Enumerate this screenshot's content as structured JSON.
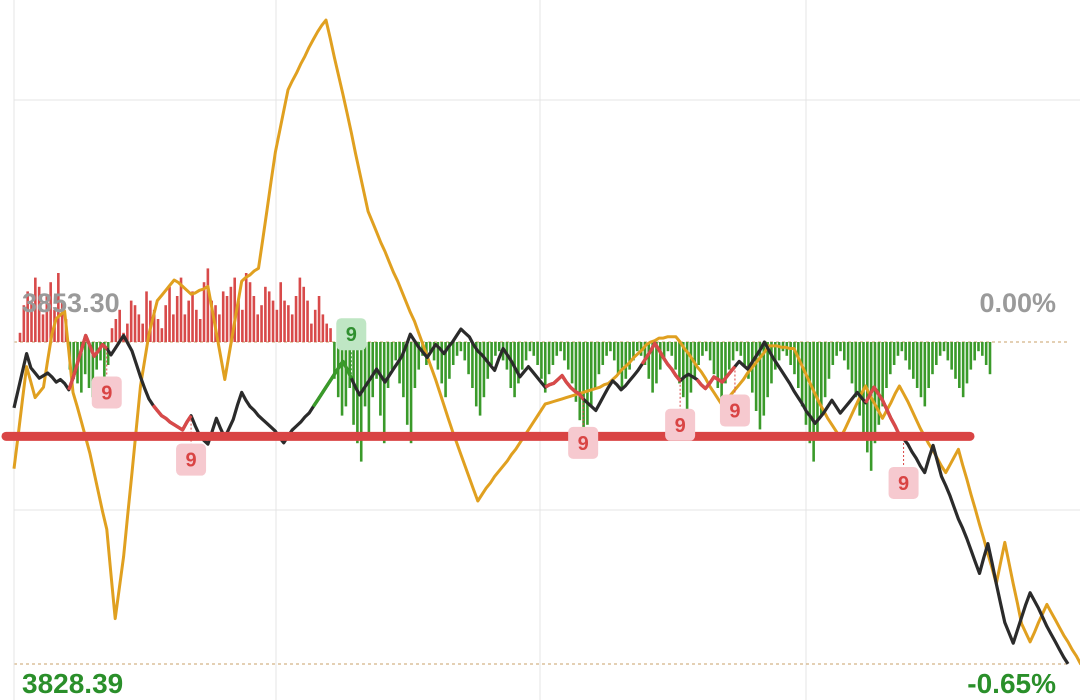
{
  "chart_data": {
    "type": "line",
    "title": "",
    "xlabel": "",
    "ylabel": "",
    "ylim": [
      3828.39,
      3878.21
    ],
    "reference_price": 3853.3,
    "labels": {
      "top_left": "3853.30",
      "top_right": "0.00%",
      "bottom_left": "3828.39",
      "bottom_right": "-0.65%"
    },
    "support_level": 3846.0,
    "colors": {
      "price_line": "#2b2b2b",
      "avg_line": "#e0a020",
      "up_bar": "#d84a4a",
      "down_bar": "#3a9a2a",
      "support": "#d94444",
      "grid": "#e4e4e4",
      "badge_red_bg": "#f6c9cf",
      "badge_red_text": "#d94444",
      "badge_green_bg": "#bfe6c4",
      "badge_green_text": "#2f8f2f"
    },
    "series": [
      {
        "values": [
          3848.2,
          3849.6,
          3851.0,
          3852.4,
          3851.3,
          3850.9,
          3850.5,
          3850.7,
          3850.9,
          3850.6,
          3850.2,
          3850.4,
          3850.1,
          3849.6,
          3850.5,
          3851.6,
          3852.7,
          3853.8,
          3853.0,
          3852.2,
          3852.6,
          3853.1,
          3852.8,
          3852.3,
          3852.8,
          3853.3,
          3853.8,
          3853.2,
          3852.6,
          3851.6,
          3850.6,
          3849.7,
          3848.9,
          3848.4,
          3848.0,
          3847.6,
          3847.4,
          3847.1,
          3846.9,
          3846.7,
          3846.5,
          3847.1,
          3847.6,
          3846.8,
          3846.1,
          3845.7,
          3845.4,
          3846.4,
          3847.4,
          3846.6,
          3845.9,
          3846.6,
          3847.3,
          3848.4,
          3849.4,
          3848.8,
          3848.3,
          3848.0,
          3847.6,
          3847.3,
          3847.0,
          3846.7,
          3846.4,
          3845.9,
          3845.5,
          3846.0,
          3846.5,
          3846.8,
          3847.1,
          3847.5,
          3847.8,
          3848.3,
          3848.8,
          3849.3,
          3849.8,
          3850.3,
          3850.8,
          3851.3,
          3851.8,
          3851.2,
          3850.5,
          3849.8,
          3849.2,
          3849.7,
          3850.2,
          3850.7,
          3851.2,
          3850.7,
          3850.2,
          3850.7,
          3851.2,
          3851.7,
          3852.2,
          3853.0,
          3853.9,
          3853.4,
          3852.9,
          3852.5,
          3852.1,
          3852.6,
          3853.1,
          3852.8,
          3852.4,
          3852.9,
          3853.3,
          3853.8,
          3854.3,
          3854.0,
          3853.7,
          3853.1,
          3852.6,
          3852.3,
          3851.9,
          3851.5,
          3851.1,
          3852.0,
          3852.8,
          3852.3,
          3851.8,
          3851.2,
          3850.6,
          3851.0,
          3851.4,
          3851.0,
          3850.6,
          3850.2,
          3849.8,
          3850.0,
          3850.1,
          3850.4,
          3850.7,
          3850.2,
          3849.8,
          3849.5,
          3849.3,
          3848.9,
          3848.6,
          3848.3,
          3848.0,
          3848.6,
          3849.2,
          3849.8,
          3850.3,
          3850.0,
          3849.6,
          3849.9,
          3850.3,
          3850.7,
          3851.1,
          3851.6,
          3852.1,
          3852.6,
          3853.2,
          3852.7,
          3852.1,
          3851.6,
          3851.2,
          3850.7,
          3850.3,
          3850.6,
          3850.8,
          3850.6,
          3850.4,
          3850.0,
          3849.7,
          3850.1,
          3850.6,
          3850.4,
          3850.2,
          3850.6,
          3851.0,
          3851.4,
          3851.8,
          3851.5,
          3851.2,
          3851.7,
          3852.2,
          3852.7,
          3853.3,
          3852.7,
          3852.1,
          3851.6,
          3851.1,
          3850.6,
          3850.1,
          3849.5,
          3849.0,
          3848.5,
          3847.9,
          3847.5,
          3847.0,
          3847.4,
          3847.8,
          3848.3,
          3848.8,
          3848.3,
          3847.8,
          3848.2,
          3848.6,
          3849.0,
          3849.4,
          3849.0,
          3848.6,
          3849.2,
          3849.8,
          3849.3,
          3848.8,
          3848.1,
          3847.4,
          3846.8,
          3846.1,
          3845.8,
          3845.4,
          3844.8,
          3844.3,
          3843.7,
          3843.2,
          3844.3,
          3845.3,
          3844.1,
          3842.9,
          3842.2,
          3841.4,
          3840.5,
          3839.6,
          3838.9,
          3838.1,
          3837.2,
          3836.3,
          3835.4,
          3836.6,
          3837.7,
          3836.2,
          3834.6,
          3833.1,
          3831.6,
          3830.8,
          3830.0,
          3831.0,
          3832.0,
          3833.0,
          3833.9,
          3833.3,
          3832.7,
          3832.0,
          3831.3,
          3830.7,
          3830.1,
          3829.5,
          3828.9,
          3828.4
        ],
        "name": ""
      },
      {
        "values": [
          3843.5,
          3846.1,
          3848.8,
          3851.4,
          3850.2,
          3849.0,
          3849.4,
          3849.8,
          3851.9,
          3853.9,
          3855.1,
          3855.4,
          3855.7,
          3852.6,
          3849.4,
          3848.3,
          3847.1,
          3845.9,
          3844.7,
          3843.2,
          3841.7,
          3840.2,
          3838.8,
          3835.3,
          3831.9,
          3834.3,
          3836.7,
          3840.0,
          3843.2,
          3846.6,
          3849.9,
          3851.9,
          3853.9,
          3855.2,
          3856.5,
          3856.9,
          3857.3,
          3857.7,
          3858.1,
          3857.9,
          3857.6,
          3857.3,
          3857.0,
          3857.1,
          3857.3,
          3857.4,
          3857.6,
          3855.8,
          3854.0,
          3852.2,
          3850.4,
          3852.3,
          3854.2,
          3856.1,
          3858.0,
          3858.3,
          3858.5,
          3858.8,
          3859.0,
          3861.2,
          3863.5,
          3865.8,
          3868.0,
          3869.6,
          3871.2,
          3872.8,
          3873.5,
          3874.1,
          3874.8,
          3875.4,
          3876.1,
          3876.7,
          3877.3,
          3877.8,
          3878.2,
          3876.8,
          3875.3,
          3873.9,
          3872.5,
          3871.0,
          3869.5,
          3867.9,
          3866.4,
          3864.9,
          3863.4,
          3862.6,
          3861.8,
          3861.0,
          3860.3,
          3859.5,
          3858.7,
          3858.0,
          3857.2,
          3856.4,
          3855.6,
          3854.9,
          3854.0,
          3853.1,
          3852.2,
          3851.3,
          3850.4,
          3849.4,
          3848.4,
          3847.4,
          3846.4,
          3845.5,
          3844.6,
          3843.7,
          3842.8,
          3841.9,
          3841.0,
          3841.5,
          3842.0,
          3842.4,
          3842.9,
          3843.3,
          3843.7,
          3844.1,
          3844.6,
          3845.0,
          3845.5,
          3846.0,
          3846.5,
          3847.0,
          3847.5,
          3848.0,
          3848.5,
          3848.6,
          3848.7,
          3848.8,
          3848.9,
          3849.0,
          3849.1,
          3849.2,
          3849.3,
          3849.4,
          3849.5,
          3849.6,
          3849.7,
          3849.8,
          3850.0,
          3850.1,
          3850.4,
          3850.7,
          3851.1,
          3851.4,
          3851.7,
          3852.1,
          3852.4,
          3852.7,
          3853.1,
          3853.3,
          3853.4,
          3853.6,
          3853.6,
          3853.7,
          3853.7,
          3853.7,
          3853.3,
          3852.8,
          3852.4,
          3851.9,
          3851.4,
          3851.0,
          3850.5,
          3849.9,
          3849.4,
          3848.9,
          3848.4,
          3848.8,
          3849.2,
          3849.6,
          3850.0,
          3850.4,
          3850.9,
          3851.3,
          3851.7,
          3852.1,
          3852.5,
          3853.0,
          3853.0,
          3853.0,
          3852.9,
          3852.9,
          3852.8,
          3852.8,
          3852.1,
          3851.4,
          3850.7,
          3850.0,
          3849.3,
          3848.6,
          3848.0,
          3847.4,
          3846.9,
          3846.4,
          3845.9,
          3846.5,
          3847.2,
          3847.9,
          3848.6,
          3849.3,
          3849.9,
          3849.2,
          3848.6,
          3848.0,
          3847.4,
          3848.0,
          3848.6,
          3849.3,
          3849.9,
          3849.3,
          3848.7,
          3848.0,
          3847.3,
          3846.6,
          3846.0,
          3845.4,
          3844.9,
          3844.3,
          3843.7,
          3843.2,
          3843.8,
          3844.4,
          3845.0,
          3843.8,
          3842.7,
          3841.5,
          3840.4,
          3839.2,
          3838.1,
          3836.9,
          3835.8,
          3834.6,
          3836.2,
          3837.8,
          3836.2,
          3834.6,
          3833.1,
          3831.5,
          3830.8,
          3830.1,
          3830.8,
          3831.6,
          3832.3,
          3833.0,
          3832.4,
          3831.8,
          3831.2,
          3830.6,
          3830.1,
          3829.5,
          3829.0,
          3828.4,
          3828.4
        ],
        "name": ""
      }
    ],
    "volume": [
      2,
      8,
      11,
      9,
      14,
      12,
      6,
      10,
      13,
      7,
      15,
      9,
      5,
      -6,
      -8,
      -9,
      -11,
      -7,
      -10,
      -12,
      -6,
      -4,
      -8,
      -5,
      3,
      5,
      7,
      2,
      4,
      9,
      8,
      6,
      4,
      11,
      9,
      7,
      5,
      3,
      8,
      12,
      6,
      10,
      14,
      6,
      9,
      11,
      7,
      5,
      13,
      16,
      9,
      8,
      6,
      11,
      10,
      12,
      14,
      9,
      7,
      15,
      13,
      10,
      6,
      8,
      12,
      11,
      9,
      7,
      13,
      9,
      8,
      6,
      10,
      14,
      12,
      9,
      4,
      7,
      10,
      6,
      4,
      3,
      -8,
      -12,
      -16,
      -14,
      -10,
      -18,
      -22,
      -26,
      -14,
      -20,
      -12,
      -8,
      -16,
      -22,
      -10,
      -6,
      -4,
      -9,
      -12,
      -18,
      -22,
      -10,
      -6,
      -3,
      -5,
      -2,
      -4,
      -6,
      -9,
      -12,
      -8,
      -5,
      -3,
      -2,
      -4,
      -7,
      -10,
      -14,
      -16,
      -12,
      -8,
      -5,
      -3,
      -2,
      -4,
      -6,
      -10,
      -12,
      -9,
      -6,
      -4,
      -2,
      -3,
      -5,
      -8,
      -11,
      -7,
      -5,
      -3,
      -2,
      -4,
      -6,
      -9,
      -13,
      -17,
      -21,
      -18,
      -14,
      -10,
      -7,
      -5,
      -3,
      -2,
      -4,
      -7,
      -10,
      -8,
      -6,
      -4,
      -2,
      -3,
      -5,
      -8,
      -11,
      -9,
      -6,
      -4,
      -2,
      -3,
      -6,
      -9,
      -12,
      -15,
      -11,
      -8,
      -5,
      -3,
      -2,
      -4,
      -7,
      -10,
      -13,
      -9,
      -6,
      -4,
      -2,
      -3,
      -5,
      -8,
      -11,
      -15,
      -19,
      -16,
      -12,
      -9,
      -6,
      -4,
      -2,
      -3,
      -5,
      -7,
      -10,
      -14,
      -18,
      -22,
      -26,
      -20,
      -16,
      -12,
      -8,
      -5,
      -3,
      -2,
      -4,
      -6,
      -9,
      -12,
      -16,
      -20,
      -24,
      -28,
      -22,
      -18,
      -14,
      -10,
      -7,
      -5,
      -3,
      -2,
      -4,
      -6,
      -8,
      -10,
      -12,
      -14,
      -10,
      -7,
      -5,
      -3,
      -2,
      -4,
      -6,
      -8,
      -10,
      -12,
      -9,
      -6,
      -4,
      -2,
      -3,
      -5,
      -7
    ],
    "signals": [
      {
        "index": 22,
        "type": "down",
        "label": "9"
      },
      {
        "index": 42,
        "type": "down",
        "label": "9"
      },
      {
        "index": 80,
        "type": "up",
        "label": "9"
      },
      {
        "index": 135,
        "type": "down",
        "label": "9"
      },
      {
        "index": 158,
        "type": "down",
        "label": "9"
      },
      {
        "index": 171,
        "type": "down",
        "label": "9"
      },
      {
        "index": 211,
        "type": "down",
        "label": "9"
      }
    ]
  }
}
